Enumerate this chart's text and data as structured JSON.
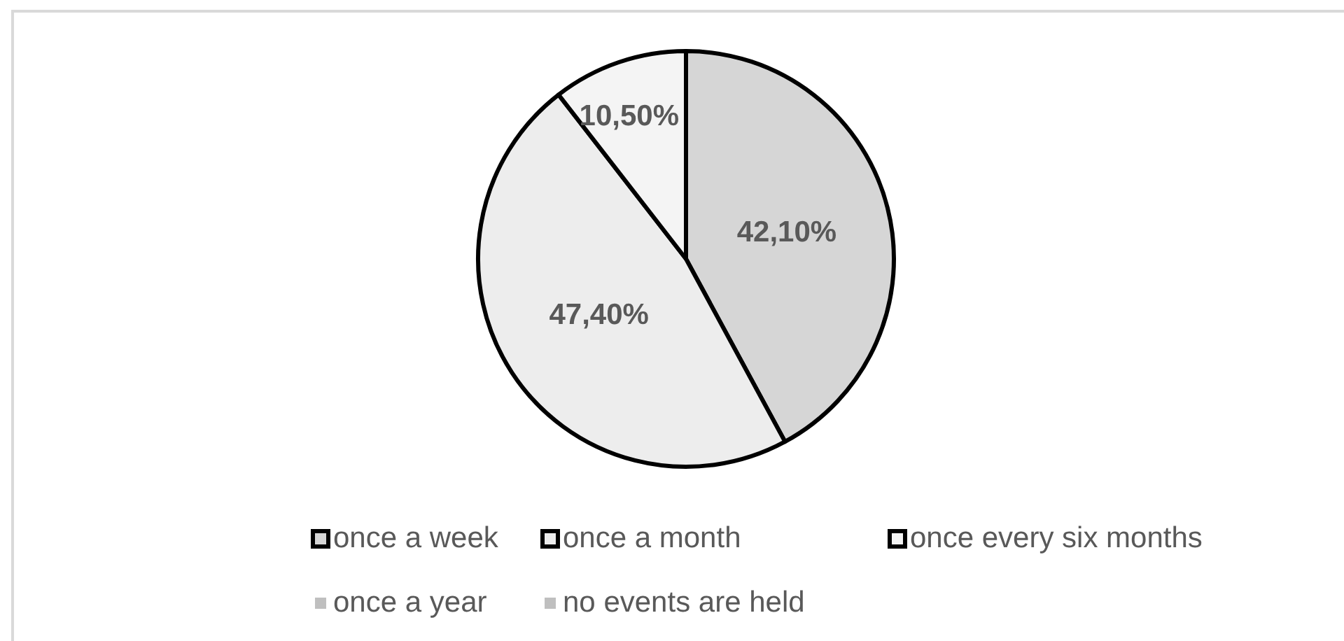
{
  "chart_data": {
    "type": "pie",
    "categories": [
      "once a week",
      "once a month",
      "once every six months",
      "once a year",
      "no events are held"
    ],
    "values": [
      42.1,
      47.4,
      10.5,
      0,
      0
    ],
    "colors": [
      "#d6d6d6",
      "#ededed",
      "#f4f4f4",
      "#bfbfbf",
      "#bfbfbf"
    ],
    "value_labels": [
      "42,10%",
      "47,40%",
      "10,50%",
      null,
      null
    ],
    "legend": "bottom"
  }
}
